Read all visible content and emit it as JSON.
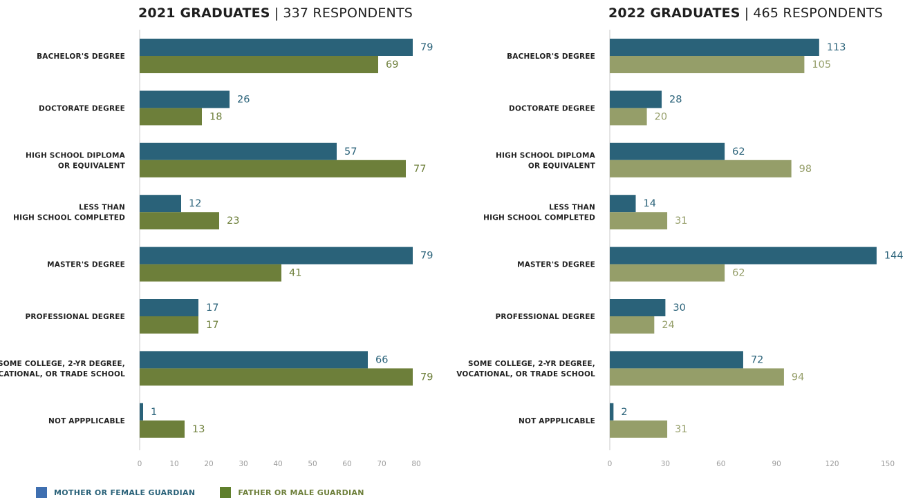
{
  "colors": {
    "mother_2021": "#2a6279",
    "father_2021": "#6d7f3a",
    "mother_2022": "#2a6279",
    "father_2022": "#959e69",
    "legend_mother": "#3f6fb0",
    "legend_father": "#5f7f2c",
    "axis": "#c8c8c8",
    "tick": "#9a9a9a",
    "category": "#222222"
  },
  "chart_data": [
    {
      "type": "bar",
      "orientation": "horizontal",
      "title_bold": "2021 GRADUATES",
      "title_sep": "|",
      "title_rest": "337 RESPONDENTS",
      "categories": [
        [
          "BACHELOR'S DEGREE"
        ],
        [
          "DOCTORATE DEGREE"
        ],
        [
          "HIGH SCHOOL DIPLOMA",
          "OR EQUIVALENT"
        ],
        [
          "LESS THAN",
          "HIGH SCHOOL COMPLETED"
        ],
        [
          "MASTER'S DEGREE"
        ],
        [
          "PROFESSIONAL DEGREE"
        ],
        [
          "SOME COLLEGE, 2-YR DEGREE,",
          "VOCATIONAL, OR TRADE SCHOOL"
        ],
        [
          "NOT APPPLICABLE"
        ]
      ],
      "series": [
        {
          "name": "MOTHER OR FEMALE GUARDIAN",
          "values": [
            79,
            26,
            57,
            12,
            79,
            17,
            66,
            1
          ]
        },
        {
          "name": "FATHER OR MALE GUARDIAN",
          "values": [
            69,
            18,
            77,
            23,
            41,
            17,
            79,
            13
          ]
        }
      ],
      "xlim": [
        0,
        80
      ],
      "xticks": [
        "0",
        "10",
        "20",
        "30",
        "40",
        "50",
        "60",
        "70",
        "80"
      ],
      "grid": false
    },
    {
      "type": "bar",
      "orientation": "horizontal",
      "title_bold": "2022 GRADUATES",
      "title_sep": "|",
      "title_rest": "465 RESPONDENTS",
      "categories": [
        [
          "BACHELOR'S DEGREE"
        ],
        [
          "DOCTORATE DEGREE"
        ],
        [
          "HIGH SCHOOL DIPLOMA",
          "OR EQUIVALENT"
        ],
        [
          "LESS THAN",
          "HIGH SCHOOL COMPLETED"
        ],
        [
          "MASTER'S DEGREE"
        ],
        [
          "PROFESSIONAL DEGREE"
        ],
        [
          "SOME COLLEGE, 2-YR DEGREE,",
          "VOCATIONAL, OR TRADE SCHOOL"
        ],
        [
          "NOT APPPLICABLE"
        ]
      ],
      "series": [
        {
          "name": "MOTHER OR FEMALE GUARDIAN",
          "values": [
            113,
            28,
            62,
            14,
            144,
            30,
            72,
            2
          ]
        },
        {
          "name": "FATHER OR MALE GUARDIAN",
          "values": [
            105,
            20,
            98,
            31,
            62,
            24,
            94,
            31
          ]
        }
      ],
      "xlim": [
        0,
        150
      ],
      "xticks": [
        "0",
        "30",
        "60",
        "90",
        "120",
        "150"
      ],
      "grid": false
    }
  ],
  "legend": {
    "placement": "bottom-left",
    "items": [
      {
        "label": "MOTHER OR FEMALE GUARDIAN"
      },
      {
        "label": "FATHER OR MALE GUARDIAN"
      }
    ]
  }
}
